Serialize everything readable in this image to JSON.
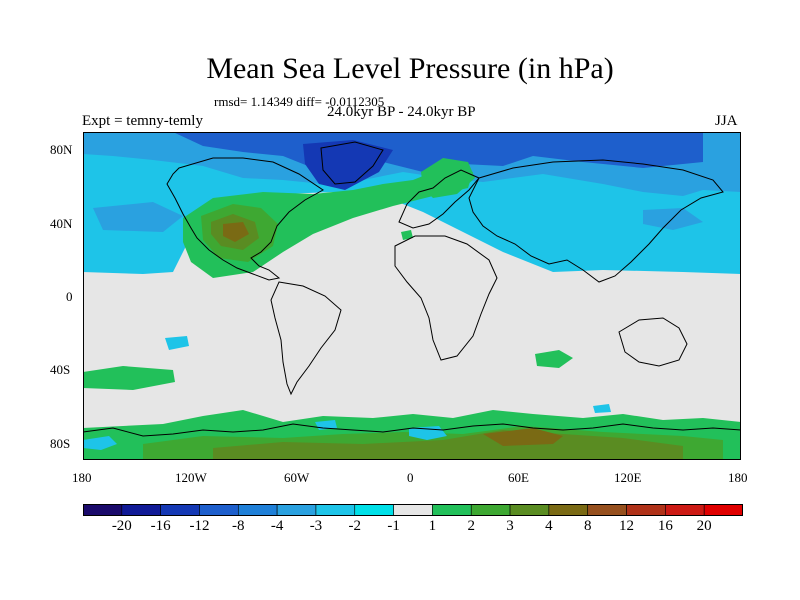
{
  "title": "Mean Sea Level Pressure (in hPa)",
  "stats_line": "rmsd= 1.14349 diff= -0.0112305",
  "period_line": "24.0kyr BP - 24.0kyr BP",
  "experiment_label": "Expt = temny-temly",
  "season_label": "JJA",
  "map": {
    "projection": "cylindrical-equidistant",
    "lat_tick_labels": [
      "80N",
      "40N",
      "0",
      "40S",
      "80S"
    ],
    "lon_tick_labels": [
      "180",
      "120W",
      "60W",
      "0",
      "60E",
      "120E",
      "180"
    ],
    "background_color": "#e6e6e6",
    "coastline_color": "#000000"
  },
  "colorbar": {
    "boundary_labels": [
      "-20",
      "-16",
      "-12",
      "-8",
      "-4",
      "-3",
      "-2",
      "-1",
      "1",
      "2",
      "3",
      "4",
      "8",
      "12",
      "16",
      "20"
    ],
    "bin_colors": [
      "#1a0a6b",
      "#101a96",
      "#1438b4",
      "#1e5fcc",
      "#1f80d8",
      "#2aa1e0",
      "#1ec4e8",
      "#00e0e8",
      "#e6e6e6",
      "#22c05a",
      "#3ea832",
      "#5a8c22",
      "#7a6a14",
      "#96501e",
      "#b03219",
      "#cc1a14",
      "#e00000"
    ]
  }
}
